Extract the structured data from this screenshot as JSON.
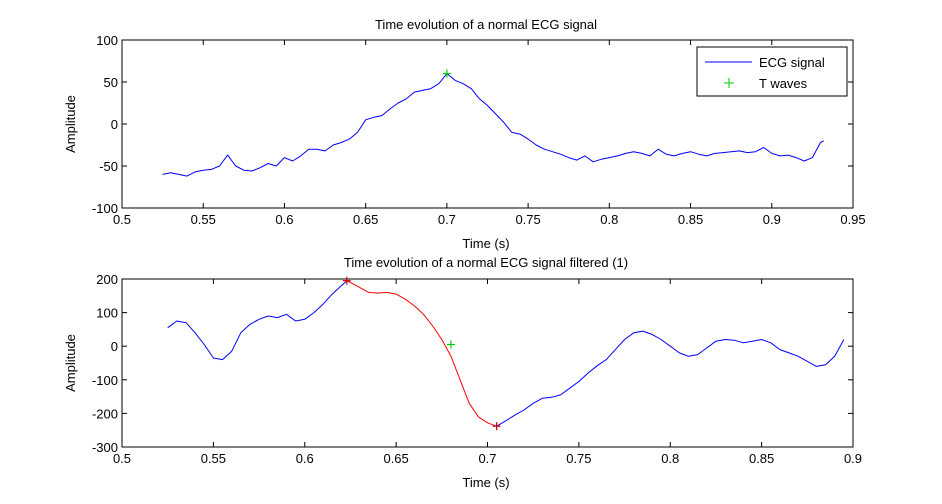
{
  "chart_data": [
    {
      "type": "line",
      "title": "Time evolution of a normal ECG signal",
      "xlabel": "Time (s)",
      "ylabel": "Amplitude",
      "xlim": [
        0.5,
        0.95
      ],
      "ylim": [
        -100,
        100
      ],
      "xticks": [
        "0.5",
        "0.55",
        "0.6",
        "0.65",
        "0.7",
        "0.75",
        "0.8",
        "0.85",
        "0.9",
        "0.95"
      ],
      "yticks": [
        "-100",
        "-50",
        "0",
        "50",
        "100"
      ],
      "grid": false,
      "legend_position": "top-right",
      "colors": {
        "signal": "#0000ff",
        "t_wave": "#00cc00"
      },
      "series": [
        {
          "name": "ECG signal",
          "x": [
            0.525,
            0.53,
            0.535,
            0.54,
            0.545,
            0.55,
            0.555,
            0.56,
            0.565,
            0.57,
            0.575,
            0.58,
            0.585,
            0.59,
            0.595,
            0.6,
            0.605,
            0.61,
            0.615,
            0.62,
            0.625,
            0.63,
            0.635,
            0.64,
            0.645,
            0.65,
            0.655,
            0.66,
            0.665,
            0.67,
            0.675,
            0.68,
            0.685,
            0.69,
            0.695,
            0.7,
            0.705,
            0.71,
            0.715,
            0.72,
            0.725,
            0.73,
            0.735,
            0.74,
            0.745,
            0.75,
            0.755,
            0.76,
            0.765,
            0.77,
            0.775,
            0.78,
            0.785,
            0.79,
            0.795,
            0.8,
            0.805,
            0.81,
            0.815,
            0.82,
            0.825,
            0.83,
            0.835,
            0.84,
            0.845,
            0.85,
            0.855,
            0.86,
            0.865,
            0.87,
            0.875,
            0.88,
            0.885,
            0.89,
            0.895,
            0.9,
            0.905,
            0.91,
            0.915,
            0.92,
            0.925,
            0.93,
            0.932
          ],
          "y": [
            -60,
            -58,
            -60,
            -62,
            -57,
            -55,
            -54,
            -50,
            -37,
            -50,
            -55,
            -56,
            -52,
            -47,
            -50,
            -40,
            -44,
            -38,
            -30,
            -30,
            -32,
            -25,
            -22,
            -18,
            -10,
            5,
            8,
            10,
            18,
            25,
            30,
            38,
            40,
            42,
            48,
            60,
            52,
            48,
            42,
            30,
            22,
            12,
            2,
            -10,
            -12,
            -18,
            -25,
            -30,
            -33,
            -36,
            -40,
            -43,
            -38,
            -45,
            -42,
            -40,
            -38,
            -35,
            -33,
            -35,
            -38,
            -30,
            -36,
            -38,
            -35,
            -33,
            -36,
            -38,
            -35,
            -34,
            -33,
            -32,
            -34,
            -33,
            -28,
            -35,
            -38,
            -37,
            -40,
            -44,
            -40,
            -22,
            -20
          ]
        },
        {
          "name": "T waves",
          "marker": "+",
          "x": [
            0.7
          ],
          "y": [
            60
          ]
        }
      ]
    },
    {
      "type": "line",
      "title": "Time evolution of a normal ECG signal filtered (1)",
      "xlabel": "Time (s)",
      "ylabel": "Amplitude",
      "xlim": [
        0.5,
        0.9
      ],
      "ylim": [
        -300,
        200
      ],
      "xticks": [
        "0.5",
        "0.55",
        "0.6",
        "0.65",
        "0.7",
        "0.75",
        "0.8",
        "0.85",
        "0.9"
      ],
      "yticks": [
        "-300",
        "-200",
        "-100",
        "0",
        "100",
        "200"
      ],
      "grid": false,
      "colors": {
        "signal": "#0000ff",
        "highlight": "#ff0000",
        "peak": "#cc0000",
        "center": "#00cc00"
      },
      "series": [
        {
          "x": [
            0.525,
            0.53,
            0.535,
            0.54,
            0.545,
            0.55,
            0.555,
            0.56,
            0.565,
            0.57,
            0.575,
            0.58,
            0.585,
            0.59,
            0.595,
            0.6,
            0.605,
            0.61,
            0.615,
            0.62,
            0.623
          ],
          "y": [
            55,
            75,
            70,
            40,
            5,
            -35,
            -40,
            -15,
            40,
            65,
            80,
            90,
            85,
            95,
            75,
            80,
            100,
            125,
            155,
            180,
            195
          ]
        },
        {
          "x": [
            0.623,
            0.625,
            0.63,
            0.635,
            0.64,
            0.645,
            0.65,
            0.655,
            0.66,
            0.665,
            0.67,
            0.675,
            0.68,
            0.685,
            0.69,
            0.695,
            0.7,
            0.705
          ],
          "y": [
            195,
            190,
            175,
            160,
            158,
            160,
            155,
            140,
            120,
            95,
            60,
            20,
            -30,
            -100,
            -170,
            -210,
            -228,
            -238
          ]
        },
        {
          "x": [
            0.705,
            0.71,
            0.715,
            0.72,
            0.725,
            0.73,
            0.735,
            0.74,
            0.745,
            0.75,
            0.755,
            0.76,
            0.765,
            0.77,
            0.775,
            0.78,
            0.785,
            0.79,
            0.795,
            0.8,
            0.805,
            0.81,
            0.815,
            0.82,
            0.825,
            0.83,
            0.835,
            0.84,
            0.845,
            0.85,
            0.855,
            0.86,
            0.865,
            0.87,
            0.875,
            0.88,
            0.885,
            0.89,
            0.895
          ],
          "y": [
            -238,
            -222,
            -205,
            -190,
            -170,
            -155,
            -152,
            -145,
            -125,
            -105,
            -80,
            -58,
            -40,
            -10,
            20,
            40,
            45,
            35,
            20,
            0,
            -20,
            -30,
            -25,
            -5,
            15,
            20,
            18,
            10,
            15,
            20,
            10,
            -10,
            -20,
            -30,
            -45,
            -60,
            -55,
            -30,
            20
          ]
        },
        {
          "marker": "+",
          "x": [
            0.623,
            0.705
          ],
          "y": [
            195,
            -238
          ]
        },
        {
          "marker": "+",
          "x": [
            0.68
          ],
          "y": [
            5
          ]
        }
      ]
    }
  ]
}
